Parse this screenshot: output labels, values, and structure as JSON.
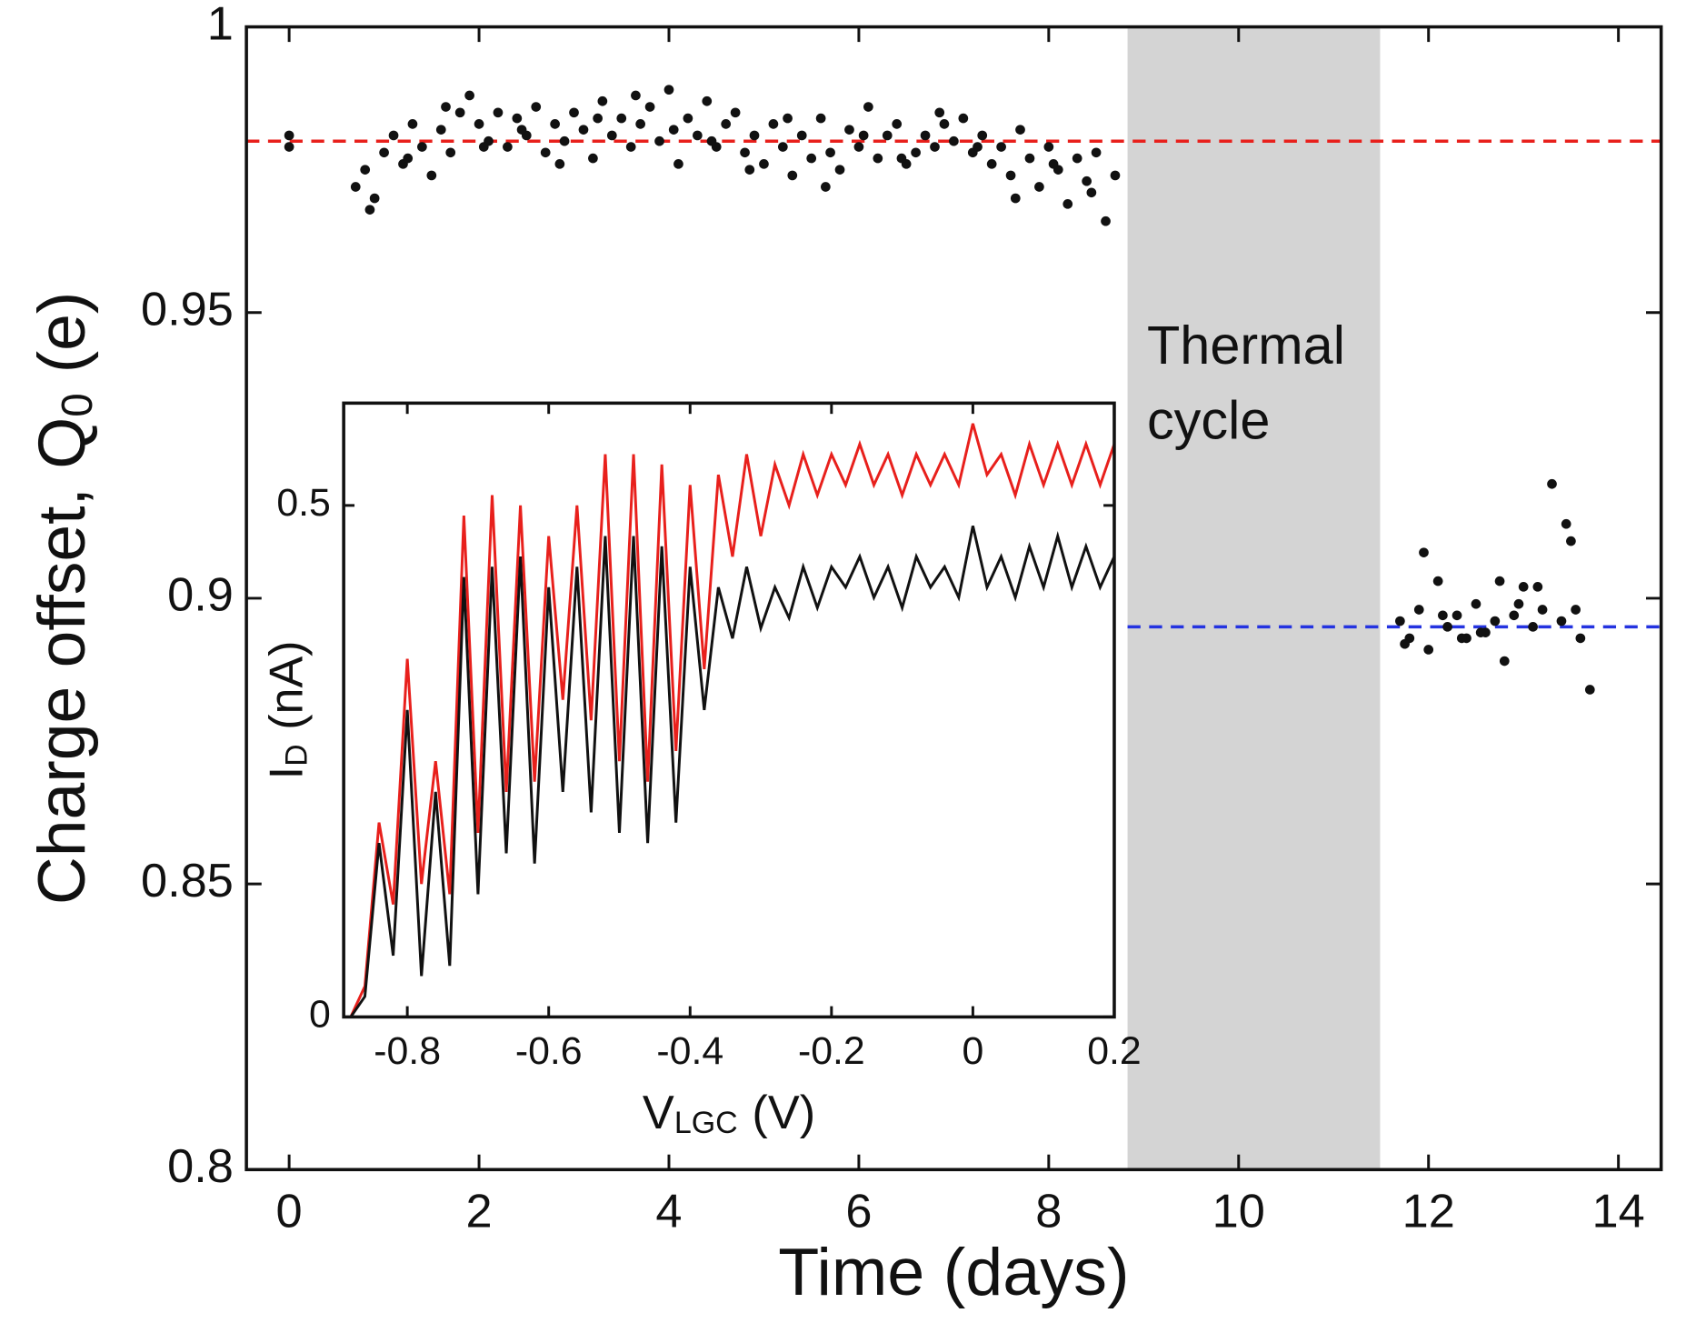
{
  "chart_data": [
    {
      "type": "scatter",
      "xlabel": "Time (days)",
      "ylabel": [
        "Charge offset, Q",
        "0",
        "(e)"
      ],
      "xlim": [
        -0.45,
        14.45
      ],
      "ylim": [
        0.8,
        1
      ],
      "xticks": [
        0,
        2,
        4,
        6,
        8,
        10,
        12,
        14
      ],
      "yticks": [
        0.8,
        0.85,
        0.9,
        0.95,
        1
      ],
      "shade": {
        "x": [
          8.83,
          11.49
        ],
        "color": "#d4d4d4",
        "label": [
          "Thermal",
          "cycle"
        ]
      },
      "hlines": [
        {
          "y": 0.98,
          "x": [
            -0.45,
            14.45
          ],
          "color": "#e8201c"
        },
        {
          "y": 0.895,
          "x": [
            8.83,
            14.45
          ],
          "color": "#2433e0"
        }
      ],
      "series": [
        {
          "color": "#111111",
          "x": [
            0,
            0,
            0.7,
            0.8,
            0.9,
            1.0,
            1.1,
            1.2,
            1.3,
            1.4,
            1.5,
            1.6,
            1.7,
            1.8,
            1.9,
            2.0,
            2.1,
            2.2,
            2.3,
            2.4,
            2.5,
            2.6,
            2.7,
            2.8,
            2.9,
            3.0,
            3.1,
            3.2,
            3.3,
            3.4,
            3.5,
            3.6,
            3.7,
            3.8,
            3.9,
            4.0,
            4.1,
            4.2,
            4.3,
            4.4,
            4.5,
            4.6,
            4.7,
            4.8,
            4.9,
            5.0,
            5.1,
            5.2,
            5.3,
            5.4,
            5.5,
            5.6,
            5.7,
            5.8,
            5.9,
            6.0,
            6.1,
            6.2,
            6.3,
            6.4,
            6.5,
            6.6,
            6.7,
            6.8,
            6.9,
            7.0,
            7.1,
            7.2,
            7.3,
            7.4,
            7.5,
            7.6,
            7.7,
            7.8,
            7.9,
            8.0,
            8.1,
            8.2,
            8.3,
            8.4,
            8.5,
            8.6,
            8.7,
            0.85,
            1.25,
            1.65,
            2.05,
            2.45,
            2.85,
            3.25,
            3.65,
            4.05,
            4.45,
            4.85,
            5.25,
            5.65,
            6.05,
            6.45,
            6.85,
            7.25,
            7.65,
            8.05,
            8.45,
            11.7,
            11.8,
            11.9,
            12.0,
            12.1,
            12.2,
            12.3,
            12.4,
            12.5,
            12.6,
            12.7,
            12.8,
            12.9,
            13.0,
            13.1,
            13.2,
            13.3,
            13.4,
            13.5,
            13.6,
            13.7,
            11.75,
            11.95,
            12.15,
            12.35,
            12.55,
            12.75,
            12.95,
            13.15,
            13.45,
            13.55
          ],
          "values": [
            0.979,
            0.981,
            0.972,
            0.975,
            0.97,
            0.978,
            0.981,
            0.976,
            0.983,
            0.979,
            0.974,
            0.982,
            0.978,
            0.985,
            0.988,
            0.983,
            0.98,
            0.985,
            0.979,
            0.984,
            0.981,
            0.986,
            0.978,
            0.983,
            0.98,
            0.985,
            0.982,
            0.977,
            0.987,
            0.981,
            0.984,
            0.979,
            0.983,
            0.986,
            0.98,
            0.989,
            0.976,
            0.984,
            0.981,
            0.987,
            0.979,
            0.983,
            0.985,
            0.978,
            0.981,
            0.976,
            0.983,
            0.979,
            0.974,
            0.981,
            0.977,
            0.984,
            0.978,
            0.975,
            0.982,
            0.979,
            0.986,
            0.977,
            0.981,
            0.983,
            0.976,
            0.978,
            0.981,
            0.979,
            0.983,
            0.98,
            0.984,
            0.978,
            0.981,
            0.976,
            0.979,
            0.974,
            0.982,
            0.977,
            0.972,
            0.979,
            0.975,
            0.969,
            0.977,
            0.973,
            0.978,
            0.966,
            0.974,
            0.968,
            0.977,
            0.986,
            0.979,
            0.982,
            0.976,
            0.984,
            0.988,
            0.982,
            0.98,
            0.975,
            0.984,
            0.972,
            0.981,
            0.977,
            0.985,
            0.979,
            0.97,
            0.976,
            0.971,
            0.896,
            0.893,
            0.898,
            0.891,
            0.903,
            0.895,
            0.897,
            0.893,
            0.899,
            0.894,
            0.896,
            0.889,
            0.897,
            0.902,
            0.895,
            0.898,
            0.92,
            0.896,
            0.91,
            0.893,
            0.884,
            0.892,
            0.908,
            0.897,
            0.893,
            0.894,
            0.903,
            0.899,
            0.902,
            0.913,
            0.898
          ]
        }
      ]
    },
    {
      "type": "line",
      "xlabel": [
        "V",
        "LGC",
        "(V)"
      ],
      "ylabel": [
        "I",
        "D",
        "(nA)"
      ],
      "xlim": [
        -0.89,
        0.2
      ],
      "ylim": [
        0,
        0.6
      ],
      "xticks": [
        -0.8,
        -0.6,
        -0.4,
        -0.2,
        0,
        0.2
      ],
      "yticks": [
        0,
        0.5
      ],
      "x": [
        -0.88,
        -0.86,
        -0.84,
        -0.82,
        -0.8,
        -0.78,
        -0.76,
        -0.74,
        -0.72,
        -0.7,
        -0.68,
        -0.66,
        -0.64,
        -0.62,
        -0.6,
        -0.58,
        -0.56,
        -0.54,
        -0.52,
        -0.5,
        -0.48,
        -0.46,
        -0.44,
        -0.42,
        -0.4,
        -0.38,
        -0.36,
        -0.34,
        -0.32,
        -0.3,
        -0.28,
        -0.26,
        -0.24,
        -0.22,
        -0.2,
        -0.18,
        -0.16,
        -0.14,
        -0.12,
        -0.1,
        -0.08,
        -0.06,
        -0.04,
        -0.02,
        0,
        0.02,
        0.04,
        0.06,
        0.08,
        0.1,
        0.12,
        0.14,
        0.16,
        0.18,
        0.2
      ],
      "series": [
        {
          "color": "#e8201c",
          "values": [
            0.0,
            0.03,
            0.19,
            0.11,
            0.35,
            0.13,
            0.25,
            0.12,
            0.49,
            0.18,
            0.51,
            0.22,
            0.5,
            0.23,
            0.47,
            0.31,
            0.5,
            0.29,
            0.55,
            0.25,
            0.55,
            0.23,
            0.54,
            0.26,
            0.52,
            0.34,
            0.53,
            0.45,
            0.55,
            0.47,
            0.54,
            0.5,
            0.55,
            0.51,
            0.55,
            0.52,
            0.56,
            0.52,
            0.55,
            0.51,
            0.55,
            0.52,
            0.55,
            0.52,
            0.58,
            0.53,
            0.55,
            0.51,
            0.56,
            0.52,
            0.56,
            0.52,
            0.56,
            0.52,
            0.56
          ]
        },
        {
          "color": "#111111",
          "values": [
            0.0,
            0.02,
            0.17,
            0.06,
            0.3,
            0.04,
            0.22,
            0.05,
            0.43,
            0.12,
            0.44,
            0.16,
            0.45,
            0.15,
            0.42,
            0.22,
            0.44,
            0.2,
            0.47,
            0.18,
            0.47,
            0.17,
            0.46,
            0.19,
            0.44,
            0.3,
            0.42,
            0.37,
            0.44,
            0.38,
            0.42,
            0.39,
            0.44,
            0.4,
            0.44,
            0.42,
            0.45,
            0.41,
            0.44,
            0.4,
            0.45,
            0.42,
            0.44,
            0.41,
            0.48,
            0.42,
            0.45,
            0.41,
            0.46,
            0.42,
            0.47,
            0.42,
            0.46,
            0.42,
            0.45
          ]
        }
      ]
    }
  ]
}
